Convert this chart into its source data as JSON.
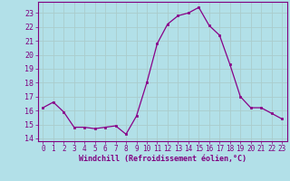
{
  "x": [
    0,
    1,
    2,
    3,
    4,
    5,
    6,
    7,
    8,
    9,
    10,
    11,
    12,
    13,
    14,
    15,
    16,
    17,
    18,
    19,
    20,
    21,
    22,
    23
  ],
  "y": [
    16.2,
    16.6,
    15.9,
    14.8,
    14.8,
    14.7,
    14.8,
    14.9,
    14.3,
    15.6,
    18.0,
    20.8,
    22.2,
    22.8,
    23.0,
    23.4,
    22.1,
    21.4,
    19.3,
    17.0,
    16.2,
    16.2,
    15.8,
    15.4
  ],
  "line_color": "#880088",
  "marker_color": "#880088",
  "bg_color": "#b2e0e8",
  "grid_color": "#aacccc",
  "xlabel": "Windchill (Refroidissement éolien,°C)",
  "ylabel_ticks": [
    14,
    15,
    16,
    17,
    18,
    19,
    20,
    21,
    22,
    23
  ],
  "xlim": [
    -0.5,
    23.5
  ],
  "ylim": [
    13.8,
    23.8
  ],
  "xticks": [
    0,
    1,
    2,
    3,
    4,
    5,
    6,
    7,
    8,
    9,
    10,
    11,
    12,
    13,
    14,
    15,
    16,
    17,
    18,
    19,
    20,
    21,
    22,
    23
  ],
  "title_color": "#800080",
  "font_family": "monospace",
  "tick_fontsize": 5.5,
  "xlabel_fontsize": 6.0,
  "ytick_fontsize": 6.0
}
